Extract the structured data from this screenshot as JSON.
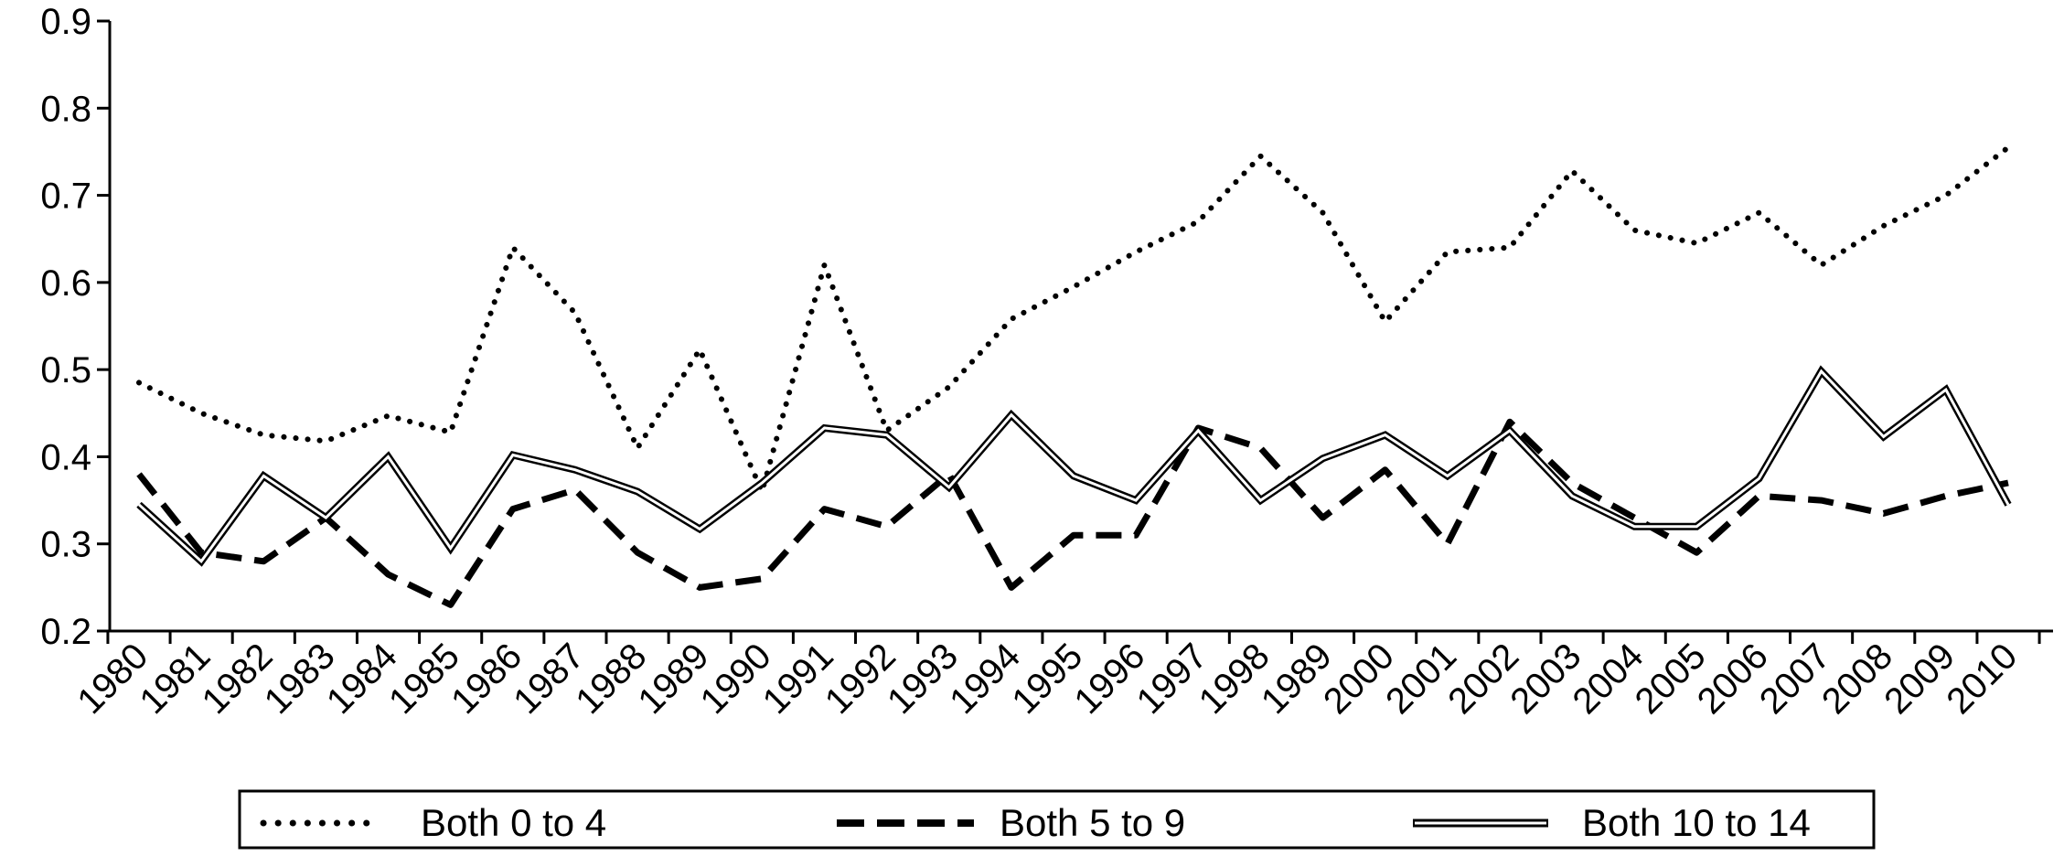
{
  "chart_data": {
    "type": "line",
    "categories": [
      "1980",
      "1981",
      "1982",
      "1983",
      "1984",
      "1985",
      "1986",
      "1987",
      "1988",
      "1989",
      "1990",
      "1991",
      "1992",
      "1993",
      "1994",
      "1995",
      "1996",
      "1997",
      "1998",
      "1989",
      "2000",
      "2001",
      "2002",
      "2003",
      "2004",
      "2005",
      "2006",
      "2007",
      "2008",
      "2009",
      "2010"
    ],
    "ylim": [
      0.2,
      0.9
    ],
    "yticks": [
      "0.2",
      "0.3",
      "0.4",
      "0.5",
      "0.6",
      "0.7",
      "0.8",
      "0.9"
    ],
    "grid": false,
    "legend_position": "bottom",
    "series": [
      {
        "name": "Both 0 to 4",
        "style": "dotted",
        "values": [
          0.485,
          0.45,
          0.425,
          0.418,
          0.447,
          0.428,
          0.64,
          0.565,
          0.41,
          0.523,
          0.36,
          0.62,
          0.43,
          0.48,
          0.558,
          0.595,
          0.635,
          0.67,
          0.745,
          0.68,
          0.555,
          0.635,
          0.64,
          0.728,
          0.66,
          0.645,
          0.68,
          0.62,
          0.665,
          0.7,
          0.755
        ]
      },
      {
        "name": "Both 5 to 9",
        "style": "dashed",
        "values": [
          0.38,
          0.29,
          0.28,
          0.33,
          0.265,
          0.23,
          0.34,
          0.362,
          0.29,
          0.25,
          0.26,
          0.34,
          0.32,
          0.38,
          0.25,
          0.31,
          0.31,
          0.433,
          0.41,
          0.33,
          0.385,
          0.3,
          0.44,
          0.37,
          0.33,
          0.29,
          0.355,
          0.35,
          0.335,
          0.355,
          0.37
        ]
      },
      {
        "name": "Both 10 to 14",
        "style": "double",
        "values": [
          0.345,
          0.28,
          0.378,
          0.33,
          0.4,
          0.295,
          0.402,
          0.385,
          0.36,
          0.317,
          0.37,
          0.433,
          0.425,
          0.365,
          0.448,
          0.378,
          0.35,
          0.43,
          0.35,
          0.398,
          0.425,
          0.378,
          0.43,
          0.355,
          0.32,
          0.32,
          0.375,
          0.498,
          0.423,
          0.477,
          0.345
        ]
      }
    ],
    "colors": {
      "line": "#000000",
      "background": "#ffffff"
    }
  }
}
